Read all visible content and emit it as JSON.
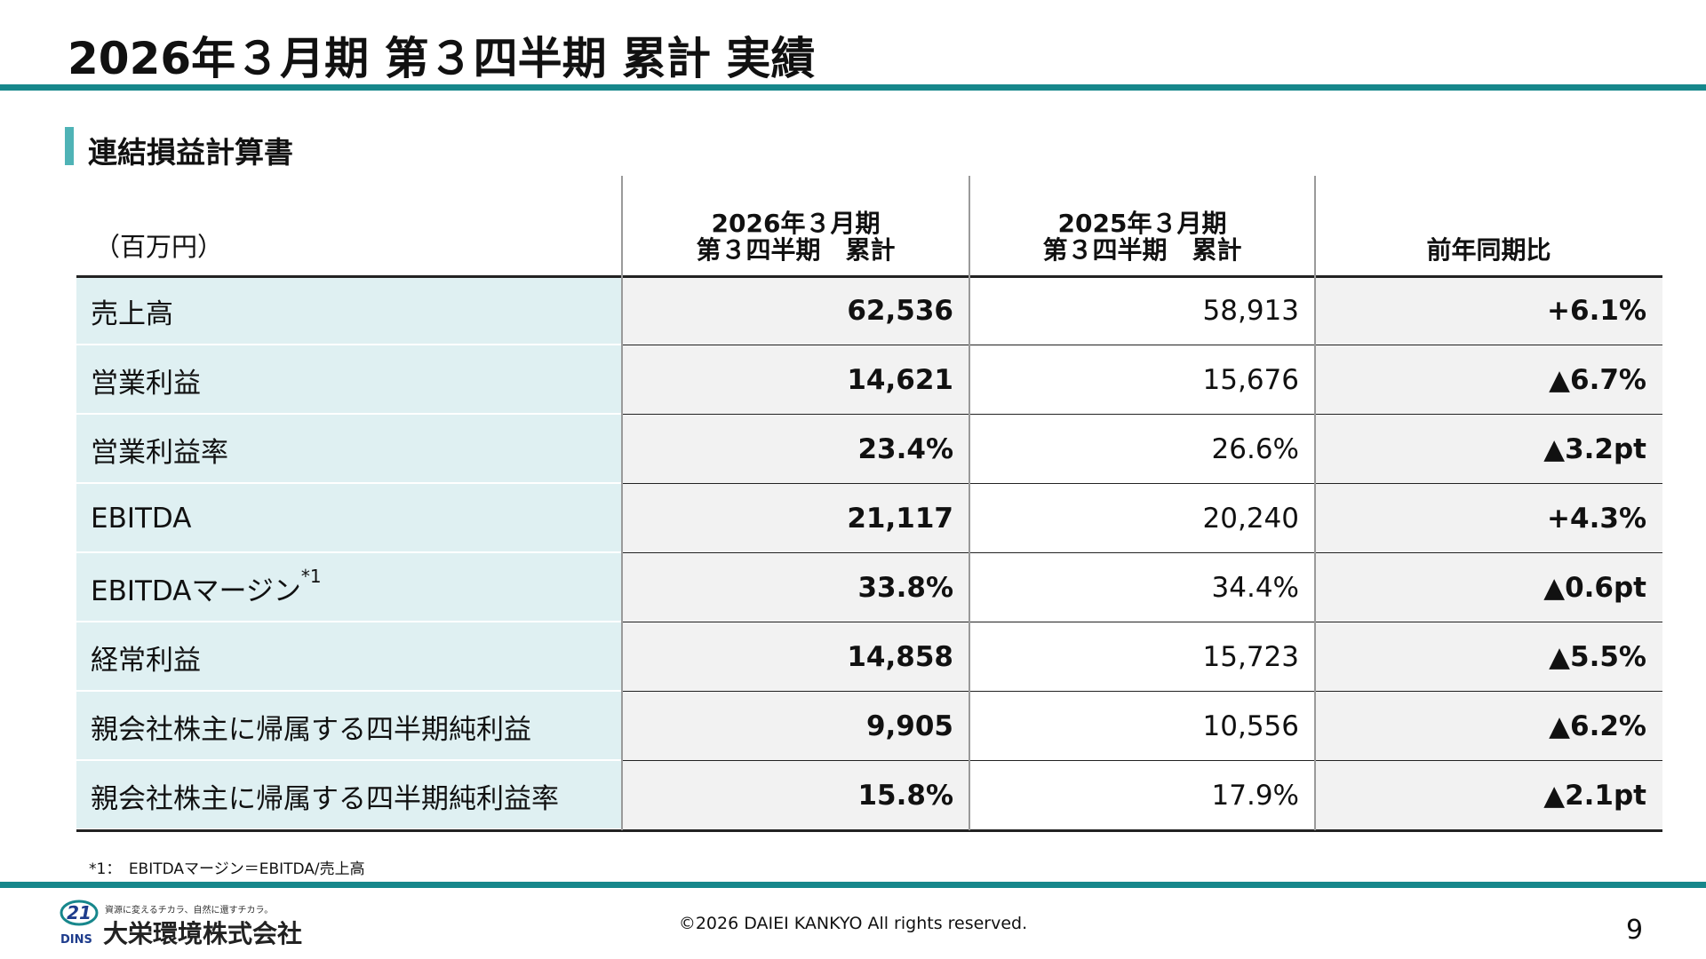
{
  "header": {
    "title": "2026年３月期 第３四半期 累計 実績"
  },
  "section": {
    "title": "連結損益計算書"
  },
  "table": {
    "unit": "（百万円）",
    "columns": [
      [
        "2026年３月期",
        "第３四半期　累計"
      ],
      [
        "2025年３月期",
        "第３四半期　累計"
      ],
      [
        "前年同期比"
      ]
    ],
    "rows": [
      {
        "label": "売上高",
        "values": [
          "62,536",
          "58,913",
          "+6.1%"
        ]
      },
      {
        "label": "営業利益",
        "values": [
          "14,621",
          "15,676",
          "▲6.7%"
        ]
      },
      {
        "label": "営業利益率",
        "values": [
          "23.4%",
          "26.6%",
          "▲3.2pt"
        ]
      },
      {
        "label": "EBITDA",
        "values": [
          "21,117",
          "20,240",
          "+4.3%"
        ]
      },
      {
        "label": "EBITDAマージン",
        "note_ref": "*1",
        "values": [
          "33.8%",
          "34.4%",
          "▲0.6pt"
        ]
      },
      {
        "label": "経常利益",
        "values": [
          "14,858",
          "15,723",
          "▲5.5%"
        ]
      },
      {
        "label": "親会社株主に帰属する四半期純利益",
        "values": [
          "9,905",
          "10,556",
          "▲6.2%"
        ]
      },
      {
        "label": "親会社株主に帰属する四半期純利益率",
        "values": [
          "15.8%",
          "17.9%",
          "▲2.1pt"
        ]
      }
    ]
  },
  "footnote": "*1：　EBITDAマージン＝EBITDA/売上高",
  "footer": {
    "logo_number": "21",
    "logo_mark": "DINS",
    "logo_tagline": "資源に変えるチカラ、自然に還すチカラ。",
    "logo_name": "大栄環境株式会社",
    "copyright": "©2026 DAIEI KANKYO All rights reserved.",
    "page": "9"
  }
}
